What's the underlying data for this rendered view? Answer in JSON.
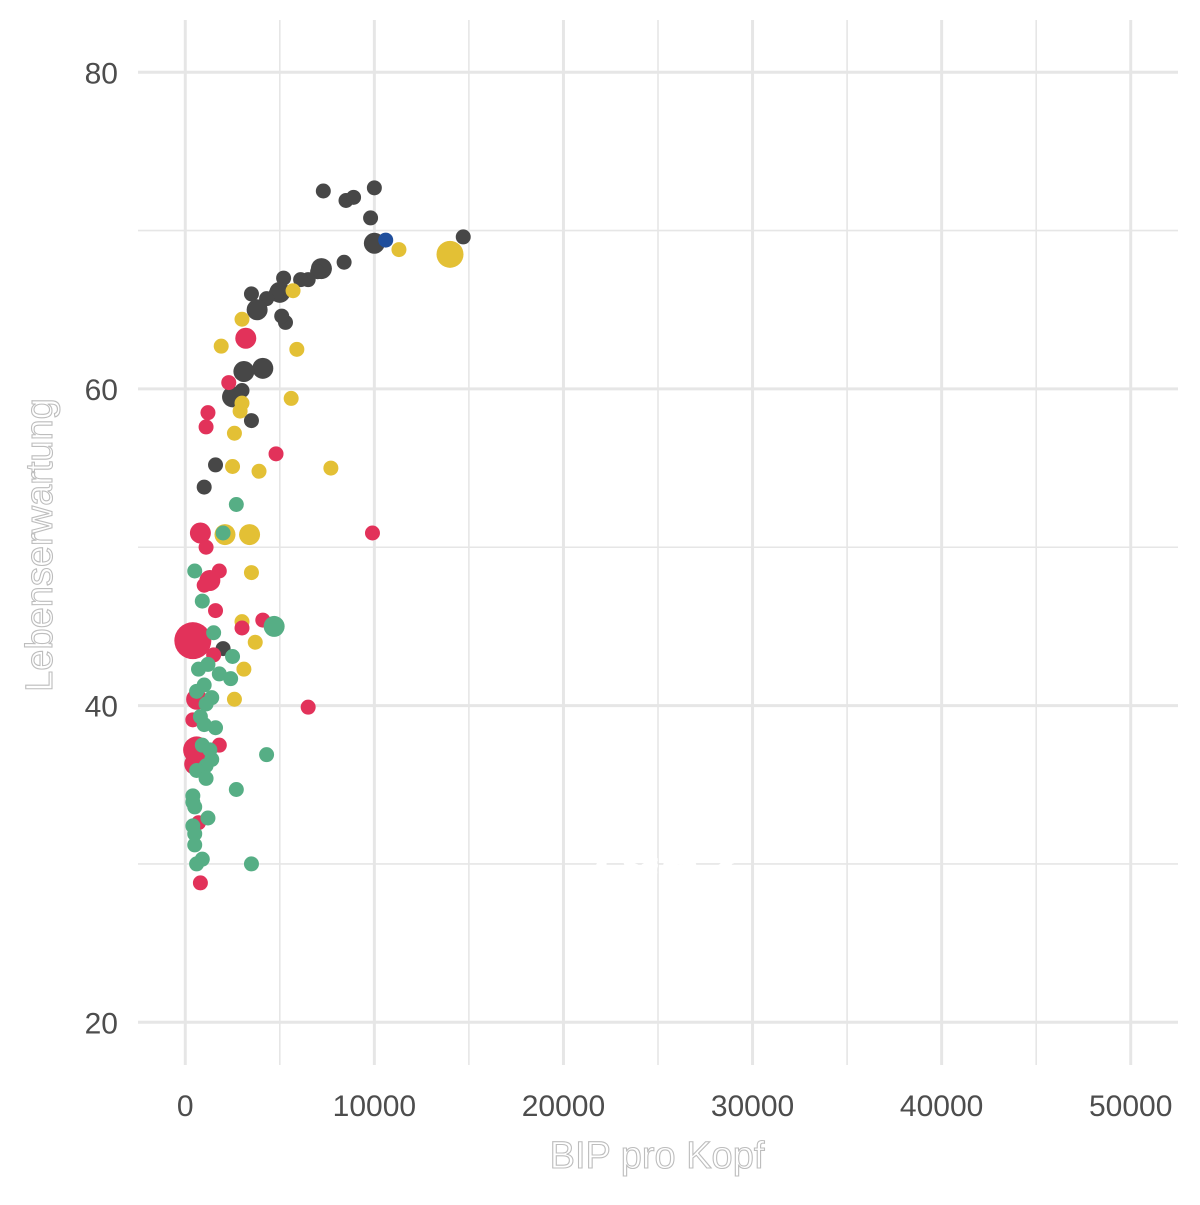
{
  "chart_data": {
    "type": "scatter",
    "title": "",
    "xlabel": "BIP pro Kopf",
    "ylabel": "Lebenserwartung",
    "annotation": "1952",
    "xlim": [
      -2500,
      52500
    ],
    "ylim": [
      17.3,
      83.3
    ],
    "x_ticks": [
      0,
      10000,
      20000,
      30000,
      40000,
      50000
    ],
    "x_tick_labels": [
      "0",
      "10000",
      "20000",
      "30000",
      "40000",
      "50000"
    ],
    "y_ticks": [
      20,
      40,
      60,
      80
    ],
    "y_tick_labels": [
      "20",
      "40",
      "60",
      "80"
    ],
    "grid": true,
    "legend": "none",
    "colors": {
      "gray": "#474747",
      "yellow": "#e3c035",
      "red": "#e2325a",
      "green": "#56ae85",
      "blue": "#1f4e9c"
    },
    "series": [
      {
        "color": "gray",
        "points": [
          {
            "x": 7300,
            "y": 72.5,
            "s": 1
          },
          {
            "x": 10000,
            "y": 72.7,
            "s": 1
          },
          {
            "x": 8500,
            "y": 71.9,
            "s": 1
          },
          {
            "x": 8900,
            "y": 72.1,
            "s": 1
          },
          {
            "x": 9800,
            "y": 70.8,
            "s": 1
          },
          {
            "x": 14700,
            "y": 69.6,
            "s": 1
          },
          {
            "x": 10000,
            "y": 69.2,
            "s": 2
          },
          {
            "x": 8400,
            "y": 68.0,
            "s": 1
          },
          {
            "x": 7200,
            "y": 67.6,
            "s": 2
          },
          {
            "x": 7000,
            "y": 67.4,
            "s": 1
          },
          {
            "x": 6500,
            "y": 66.9,
            "s": 1
          },
          {
            "x": 6100,
            "y": 66.9,
            "s": 1
          },
          {
            "x": 5200,
            "y": 67.0,
            "s": 1
          },
          {
            "x": 5000,
            "y": 66.1,
            "s": 2
          },
          {
            "x": 4800,
            "y": 66.0,
            "s": 1
          },
          {
            "x": 3500,
            "y": 66.0,
            "s": 1
          },
          {
            "x": 4300,
            "y": 65.7,
            "s": 1
          },
          {
            "x": 3800,
            "y": 65.0,
            "s": 2
          },
          {
            "x": 5300,
            "y": 64.2,
            "s": 1
          },
          {
            "x": 5100,
            "y": 64.6,
            "s": 1
          },
          {
            "x": 4100,
            "y": 61.3,
            "s": 2
          },
          {
            "x": 3100,
            "y": 61.1,
            "s": 2
          },
          {
            "x": 3000,
            "y": 59.9,
            "s": 1
          },
          {
            "x": 2500,
            "y": 59.5,
            "s": 2
          },
          {
            "x": 3500,
            "y": 58.0,
            "s": 1
          },
          {
            "x": 1600,
            "y": 55.2,
            "s": 1
          },
          {
            "x": 1000,
            "y": 53.8,
            "s": 1
          },
          {
            "x": 2000,
            "y": 43.6,
            "s": 1
          }
        ]
      },
      {
        "color": "yellow",
        "points": [
          {
            "x": 11300,
            "y": 68.8,
            "s": 1
          },
          {
            "x": 14000,
            "y": 68.5,
            "s": 3
          },
          {
            "x": 5700,
            "y": 66.2,
            "s": 1
          },
          {
            "x": 3000,
            "y": 64.4,
            "s": 1
          },
          {
            "x": 1900,
            "y": 62.7,
            "s": 1
          },
          {
            "x": 5900,
            "y": 62.5,
            "s": 1
          },
          {
            "x": 5600,
            "y": 59.4,
            "s": 1
          },
          {
            "x": 2900,
            "y": 58.6,
            "s": 1
          },
          {
            "x": 3000,
            "y": 59.1,
            "s": 1
          },
          {
            "x": 2600,
            "y": 57.2,
            "s": 1
          },
          {
            "x": 2500,
            "y": 55.1,
            "s": 1
          },
          {
            "x": 3900,
            "y": 54.8,
            "s": 1
          },
          {
            "x": 7700,
            "y": 55.0,
            "s": 1
          },
          {
            "x": 2100,
            "y": 50.8,
            "s": 2
          },
          {
            "x": 3400,
            "y": 50.8,
            "s": 2
          },
          {
            "x": 3500,
            "y": 48.4,
            "s": 1
          },
          {
            "x": 3000,
            "y": 45.3,
            "s": 1
          },
          {
            "x": 3700,
            "y": 44.0,
            "s": 1
          },
          {
            "x": 3100,
            "y": 42.3,
            "s": 1
          },
          {
            "x": 2600,
            "y": 40.4,
            "s": 1
          }
        ]
      },
      {
        "color": "red",
        "points": [
          {
            "x": 2300,
            "y": 60.4,
            "s": 1
          },
          {
            "x": 3200,
            "y": 63.2,
            "s": 2
          },
          {
            "x": 1200,
            "y": 58.5,
            "s": 1
          },
          {
            "x": 1100,
            "y": 57.6,
            "s": 1
          },
          {
            "x": 4800,
            "y": 55.9,
            "s": 1
          },
          {
            "x": 9900,
            "y": 50.9,
            "s": 1
          },
          {
            "x": 800,
            "y": 50.9,
            "s": 2
          },
          {
            "x": 1100,
            "y": 50.0,
            "s": 1
          },
          {
            "x": 1800,
            "y": 48.5,
            "s": 1
          },
          {
            "x": 1300,
            "y": 47.9,
            "s": 2
          },
          {
            "x": 1000,
            "y": 47.6,
            "s": 1
          },
          {
            "x": 1600,
            "y": 46.0,
            "s": 1
          },
          {
            "x": 4100,
            "y": 45.4,
            "s": 1
          },
          {
            "x": 3000,
            "y": 44.9,
            "s": 1
          },
          {
            "x": 400,
            "y": 44.1,
            "s": 4
          },
          {
            "x": 1500,
            "y": 43.2,
            "s": 1
          },
          {
            "x": 600,
            "y": 40.4,
            "s": 2
          },
          {
            "x": 6500,
            "y": 39.9,
            "s": 1
          },
          {
            "x": 400,
            "y": 39.1,
            "s": 1
          },
          {
            "x": 1800,
            "y": 37.5,
            "s": 1
          },
          {
            "x": 600,
            "y": 37.2,
            "s": 3
          },
          {
            "x": 500,
            "y": 36.3,
            "s": 2
          },
          {
            "x": 700,
            "y": 32.6,
            "s": 1
          },
          {
            "x": 800,
            "y": 28.8,
            "s": 1
          }
        ]
      },
      {
        "color": "green",
        "points": [
          {
            "x": 2700,
            "y": 52.7,
            "s": 1
          },
          {
            "x": 2000,
            "y": 50.9,
            "s": 1
          },
          {
            "x": 500,
            "y": 48.5,
            "s": 1
          },
          {
            "x": 900,
            "y": 46.6,
            "s": 1
          },
          {
            "x": 4700,
            "y": 45.0,
            "s": 2
          },
          {
            "x": 1500,
            "y": 44.6,
            "s": 1
          },
          {
            "x": 2500,
            "y": 43.1,
            "s": 1
          },
          {
            "x": 1200,
            "y": 42.6,
            "s": 1
          },
          {
            "x": 700,
            "y": 42.3,
            "s": 1
          },
          {
            "x": 1800,
            "y": 42.0,
            "s": 1
          },
          {
            "x": 2400,
            "y": 41.7,
            "s": 1
          },
          {
            "x": 1000,
            "y": 41.3,
            "s": 1
          },
          {
            "x": 600,
            "y": 40.9,
            "s": 1
          },
          {
            "x": 1400,
            "y": 40.5,
            "s": 1
          },
          {
            "x": 1100,
            "y": 40.1,
            "s": 1
          },
          {
            "x": 800,
            "y": 39.3,
            "s": 1
          },
          {
            "x": 1000,
            "y": 38.8,
            "s": 1
          },
          {
            "x": 1600,
            "y": 38.6,
            "s": 1
          },
          {
            "x": 900,
            "y": 37.5,
            "s": 1
          },
          {
            "x": 1300,
            "y": 37.2,
            "s": 1
          },
          {
            "x": 4300,
            "y": 36.9,
            "s": 1
          },
          {
            "x": 1400,
            "y": 36.6,
            "s": 1
          },
          {
            "x": 1100,
            "y": 36.2,
            "s": 1
          },
          {
            "x": 600,
            "y": 35.9,
            "s": 1
          },
          {
            "x": 1100,
            "y": 35.4,
            "s": 1
          },
          {
            "x": 2700,
            "y": 34.7,
            "s": 1
          },
          {
            "x": 400,
            "y": 34.3,
            "s": 1
          },
          {
            "x": 400,
            "y": 33.9,
            "s": 1
          },
          {
            "x": 500,
            "y": 33.6,
            "s": 1
          },
          {
            "x": 1200,
            "y": 32.9,
            "s": 1
          },
          {
            "x": 400,
            "y": 32.4,
            "s": 1
          },
          {
            "x": 500,
            "y": 31.9,
            "s": 1
          },
          {
            "x": 500,
            "y": 31.2,
            "s": 1
          },
          {
            "x": 900,
            "y": 30.3,
            "s": 1
          },
          {
            "x": 600,
            "y": 30.0,
            "s": 1
          },
          {
            "x": 3500,
            "y": 30.0,
            "s": 1
          }
        ]
      },
      {
        "color": "blue",
        "points": [
          {
            "x": 10600,
            "y": 69.4,
            "s": 1
          }
        ]
      }
    ]
  }
}
